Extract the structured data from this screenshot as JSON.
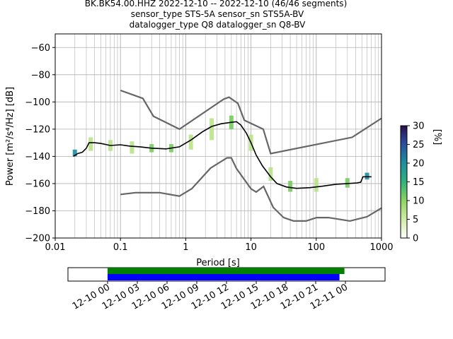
{
  "title": {
    "line1": "BK.BK54.00.HHZ   2022-12-10 -- 2022-12-10  (46/46 segments)",
    "line2": "sensor_type STS-5A sensor_sn STS5A-BV",
    "line3": "datalogger_type Q8 datalogger_sn Q8-BV"
  },
  "colors": {
    "model_curves": "#666666",
    "mode_line": "#000000",
    "data_bar_green": "#008000",
    "data_bar_blue": "#0000ff",
    "grid": "#b0b0b0"
  },
  "chart_data": [
    {
      "type": "heatmap",
      "subtype": "ppsd",
      "xlabel": "Period [s]",
      "ylabel": "Power [m²/s⁴/Hz] [dB]",
      "xscale": "log",
      "xlim": [
        0.01,
        1000
      ],
      "ylim": [
        -200,
        -50
      ],
      "grid": true,
      "x_ticks": [
        {
          "value": 0.01,
          "label": "0.01"
        },
        {
          "value": 0.1,
          "label": "0.1"
        },
        {
          "value": 1,
          "label": "1"
        },
        {
          "value": 10,
          "label": "10"
        },
        {
          "value": 100,
          "label": "100"
        },
        {
          "value": 1000,
          "label": "1000"
        }
      ],
      "y_ticks": [
        {
          "value": -60,
          "label": "−60"
        },
        {
          "value": -80,
          "label": "−80"
        },
        {
          "value": -100,
          "label": "−100"
        },
        {
          "value": -120,
          "label": "−120"
        },
        {
          "value": -140,
          "label": "−140"
        },
        {
          "value": -160,
          "label": "−160"
        },
        {
          "value": -180,
          "label": "−180"
        },
        {
          "value": -200,
          "label": "−200"
        }
      ],
      "colorbar": {
        "label": "[%]",
        "range": [
          0,
          30
        ],
        "ticks": [
          {
            "value": 0,
            "label": "0"
          },
          {
            "value": 5,
            "label": "5"
          },
          {
            "value": 10,
            "label": "10"
          },
          {
            "value": 15,
            "label": "15"
          },
          {
            "value": 20,
            "label": "20"
          },
          {
            "value": 25,
            "label": "25"
          },
          {
            "value": 30,
            "label": "30"
          }
        ]
      },
      "new_high_noise_model": [
        [
          0.1,
          -91.5
        ],
        [
          0.22,
          -97.4
        ],
        [
          0.32,
          -110.5
        ],
        [
          0.8,
          -120
        ],
        [
          3.8,
          -98
        ],
        [
          4.6,
          -96.5
        ],
        [
          6.3,
          -101
        ],
        [
          7.9,
          -113.5
        ],
        [
          15.4,
          -120
        ],
        [
          20,
          -138
        ],
        [
          354.8,
          -126
        ],
        [
          1000,
          -112
        ]
      ],
      "new_low_noise_model": [
        [
          0.1,
          -168
        ],
        [
          0.17,
          -166.7
        ],
        [
          0.4,
          -166.7
        ],
        [
          0.8,
          -169.2
        ],
        [
          1.24,
          -163.7
        ],
        [
          2.4,
          -148.6
        ],
        [
          4.3,
          -141.1
        ],
        [
          5,
          -141.1
        ],
        [
          6,
          -149
        ],
        [
          10,
          -163.8
        ],
        [
          12,
          -166.2
        ],
        [
          15.6,
          -162.1
        ],
        [
          21.9,
          -177.5
        ],
        [
          31.6,
          -185
        ],
        [
          45,
          -187.5
        ],
        [
          70,
          -187.5
        ],
        [
          101,
          -185
        ],
        [
          154,
          -185
        ],
        [
          328,
          -187.5
        ],
        [
          600,
          -184.4
        ],
        [
          1000,
          -178
        ]
      ],
      "mode_curve": [
        [
          0.019,
          -140
        ],
        [
          0.022,
          -138
        ],
        [
          0.026,
          -137
        ],
        [
          0.03,
          -134
        ],
        [
          0.033,
          -130
        ],
        [
          0.04,
          -130
        ],
        [
          0.05,
          -130.5
        ],
        [
          0.07,
          -132
        ],
        [
          0.1,
          -131.5
        ],
        [
          0.14,
          -132.5
        ],
        [
          0.2,
          -133
        ],
        [
          0.3,
          -134
        ],
        [
          0.5,
          -134.5
        ],
        [
          0.8,
          -133
        ],
        [
          1.2,
          -128
        ],
        [
          1.8,
          -122
        ],
        [
          2.5,
          -118
        ],
        [
          3.5,
          -116
        ],
        [
          5,
          -115
        ],
        [
          6,
          -114.5
        ],
        [
          7,
          -117
        ],
        [
          8.5,
          -123
        ],
        [
          10,
          -130
        ],
        [
          12,
          -139
        ],
        [
          15,
          -147
        ],
        [
          20,
          -155
        ],
        [
          25,
          -160
        ],
        [
          35,
          -162.5
        ],
        [
          50,
          -163.5
        ],
        [
          80,
          -163
        ],
        [
          120,
          -162
        ],
        [
          200,
          -160.5
        ],
        [
          300,
          -160
        ],
        [
          420,
          -159.5
        ],
        [
          480,
          -159
        ],
        [
          520,
          -155
        ],
        [
          600,
          -155
        ],
        [
          700,
          -155
        ]
      ],
      "ppsd_density": [
        {
          "period": 0.02,
          "power": [
            -140,
            -135
          ],
          "percent": 18
        },
        {
          "period": 0.035,
          "power": [
            -136,
            -126
          ],
          "percent": 8
        },
        {
          "period": 0.07,
          "power": [
            -136,
            -128
          ],
          "percent": 7
        },
        {
          "period": 0.15,
          "power": [
            -138,
            -129
          ],
          "percent": 6
        },
        {
          "period": 0.3,
          "power": [
            -137,
            -131
          ],
          "percent": 10
        },
        {
          "period": 0.6,
          "power": [
            -137,
            -131
          ],
          "percent": 12
        },
        {
          "period": 1.2,
          "power": [
            -135,
            -124
          ],
          "percent": 8
        },
        {
          "period": 2.5,
          "power": [
            -128,
            -112
          ],
          "percent": 6
        },
        {
          "period": 5,
          "power": [
            -120,
            -110
          ],
          "percent": 10
        },
        {
          "period": 10,
          "power": [
            -136,
            -124
          ],
          "percent": 8
        },
        {
          "period": 20,
          "power": [
            -158,
            -148
          ],
          "percent": 8
        },
        {
          "period": 40,
          "power": [
            -166,
            -158
          ],
          "percent": 10
        },
        {
          "period": 100,
          "power": [
            -166,
            -156
          ],
          "percent": 8
        },
        {
          "period": 300,
          "power": [
            -163,
            -156
          ],
          "percent": 10
        },
        {
          "period": 600,
          "power": [
            -157,
            -152
          ],
          "percent": 18
        }
      ]
    },
    {
      "type": "bar",
      "subtype": "data_coverage",
      "x_ticks": [
        "12-10 00",
        "12-10 03",
        "12-10 06",
        "12-10 09",
        "12-10 12",
        "12-10 15",
        "12-10 18",
        "12-10 21",
        "12-11 00"
      ],
      "xlim_hours": [
        -4,
        28
      ],
      "series": [
        {
          "color": "#008000",
          "start_hour": 0,
          "end_hour": 23.9
        },
        {
          "color": "#0000ff",
          "start_hour": 0,
          "end_hour": 23.4
        }
      ]
    }
  ]
}
